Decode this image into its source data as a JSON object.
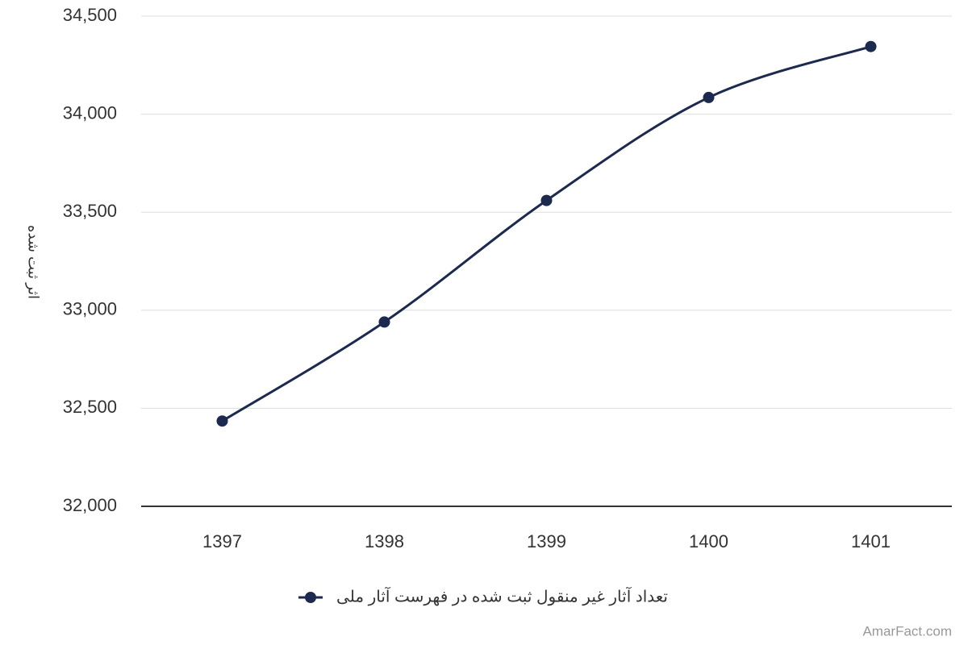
{
  "chart_data": {
    "type": "line",
    "y_label": "اثر ثبت شده",
    "categories": [
      "1397",
      "1398",
      "1399",
      "1400",
      "1401"
    ],
    "series": [
      {
        "name": "تعداد آثار غیر منقول ثبت شده در فهرست آثار ملی",
        "color": "#1b2a4e",
        "values": [
          32435,
          32940,
          33560,
          34085,
          34345
        ]
      }
    ],
    "ylim": [
      32000,
      34500
    ],
    "yticks": [
      {
        "value": 32000,
        "label": "32,000"
      },
      {
        "value": 32500,
        "label": "32,500"
      },
      {
        "value": 33000,
        "label": "33,000"
      },
      {
        "value": 33500,
        "label": "33,500"
      },
      {
        "value": 34000,
        "label": "34,000"
      },
      {
        "value": 34500,
        "label": "34,500"
      }
    ],
    "grid": true,
    "watermark": "AmarFact.com"
  }
}
